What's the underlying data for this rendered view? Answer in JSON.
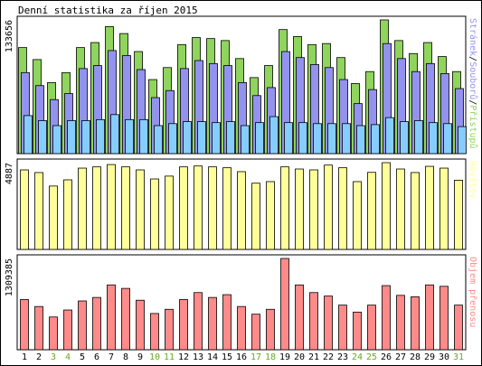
{
  "title": "Denní statistika za říjen 2015",
  "colors": {
    "pages": "#8fd45c",
    "files": "#9393ef",
    "hits": "#86cdff",
    "visits": "#ffff99",
    "volume": "#ff8a8a",
    "weekend_label": "#66aa22",
    "weekday_label": "#000000",
    "axis_border": "#000000"
  },
  "chart_data": [
    {
      "type": "bar",
      "panel": "stranky-soubory-pristupy",
      "ymax_label": "133656",
      "ymax": 133656,
      "legend": [
        {
          "text": "Stránek",
          "color": "#9393ef"
        },
        {
          "text": "/",
          "color": "#000000"
        },
        {
          "text": "Souborů",
          "color": "#9393ef"
        },
        {
          "text": "/",
          "color": "#000000"
        },
        {
          "text": "Přístupů",
          "color": "#8fd45c"
        }
      ],
      "categories": [
        "1",
        "2",
        "3",
        "4",
        "5",
        "6",
        "7",
        "8",
        "9",
        "10",
        "11",
        "12",
        "13",
        "14",
        "15",
        "16",
        "17",
        "18",
        "19",
        "20",
        "21",
        "22",
        "23",
        "24",
        "25",
        "26",
        "27",
        "28",
        "29",
        "30",
        "31"
      ],
      "series": [
        {
          "name": "Přístupů",
          "values": [
            106000,
            94000,
            71000,
            81000,
            106000,
            111000,
            127000,
            120000,
            102000,
            74000,
            86000,
            109000,
            116000,
            115000,
            113000,
            95000,
            76000,
            88000,
            124000,
            117000,
            109000,
            110000,
            96000,
            70000,
            82000,
            133656,
            113000,
            100000,
            111000,
            97000,
            82000
          ]
        },
        {
          "name": "Souborů",
          "values": [
            81000,
            68000,
            54000,
            60000,
            85000,
            88000,
            103000,
            98000,
            84000,
            56000,
            63000,
            85000,
            93000,
            90000,
            88000,
            71000,
            58000,
            66000,
            102000,
            96000,
            89000,
            86000,
            74000,
            50000,
            64000,
            110000,
            95000,
            82000,
            90000,
            80000,
            65000
          ]
        },
        {
          "name": "Stránek",
          "values": [
            38000,
            33000,
            28000,
            33000,
            33000,
            34000,
            39000,
            34000,
            34000,
            28000,
            30000,
            32000,
            32000,
            31000,
            32000,
            28000,
            31000,
            37000,
            31000,
            31000,
            30000,
            30000,
            30000,
            28000,
            29000,
            36000,
            32000,
            33000,
            31000,
            30000,
            27000
          ]
        }
      ]
    },
    {
      "type": "bar",
      "panel": "navstev",
      "ymax_label": "4887",
      "ymax": 4887,
      "legend": [
        {
          "text": "Návštěv",
          "color": "#ffff99"
        }
      ],
      "categories": [
        "1",
        "2",
        "3",
        "4",
        "5",
        "6",
        "7",
        "8",
        "9",
        "10",
        "11",
        "12",
        "13",
        "14",
        "15",
        "16",
        "17",
        "18",
        "19",
        "20",
        "21",
        "22",
        "23",
        "24",
        "25",
        "26",
        "27",
        "28",
        "29",
        "30",
        "31"
      ],
      "series": [
        {
          "name": "Návštěv",
          "values": [
            4480,
            4330,
            3570,
            3920,
            4580,
            4650,
            4780,
            4650,
            4480,
            3970,
            4130,
            4650,
            4700,
            4650,
            4600,
            4380,
            3730,
            3820,
            4650,
            4530,
            4480,
            4750,
            4600,
            3820,
            4340,
            4887,
            4530,
            4330,
            4680,
            4580,
            3900
          ]
        }
      ]
    },
    {
      "type": "bar",
      "panel": "objem-prenosu",
      "ymax_label": "1309385",
      "ymax": 1309385,
      "legend": [
        {
          "text": "Objem přenosu",
          "color": "#ff8a8a"
        }
      ],
      "categories": [
        "1",
        "2",
        "3",
        "4",
        "5",
        "6",
        "7",
        "8",
        "9",
        "10",
        "11",
        "12",
        "13",
        "14",
        "15",
        "16",
        "17",
        "18",
        "19",
        "20",
        "21",
        "22",
        "23",
        "24",
        "25",
        "26",
        "27",
        "28",
        "29",
        "30",
        "31"
      ],
      "series": [
        {
          "name": "Objem přenosu",
          "values": [
            720000,
            620000,
            470000,
            570000,
            700000,
            750000,
            930000,
            880000,
            710000,
            520000,
            580000,
            720000,
            820000,
            750000,
            790000,
            620000,
            510000,
            580000,
            1309385,
            930000,
            820000,
            770000,
            640000,
            540000,
            640000,
            920000,
            780000,
            760000,
            930000,
            910000,
            640000
          ]
        }
      ]
    }
  ],
  "x_labels": [
    "1",
    "2",
    "3",
    "4",
    "5",
    "6",
    "7",
    "8",
    "9",
    "10",
    "11",
    "12",
    "13",
    "14",
    "15",
    "16",
    "17",
    "18",
    "19",
    "20",
    "21",
    "22",
    "23",
    "24",
    "25",
    "26",
    "27",
    "28",
    "29",
    "30",
    "31"
  ],
  "weekend_days": [
    "3",
    "4",
    "10",
    "11",
    "17",
    "18",
    "24",
    "25",
    "31"
  ]
}
